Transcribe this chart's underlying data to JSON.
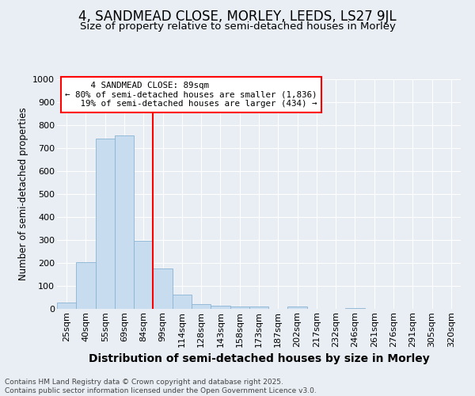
{
  "title": "4, SANDMEAD CLOSE, MORLEY, LEEDS, LS27 9JL",
  "subtitle": "Size of property relative to semi-detached houses in Morley",
  "xlabel": "Distribution of semi-detached houses by size in Morley",
  "ylabel": "Number of semi-detached properties",
  "categories": [
    "25sqm",
    "40sqm",
    "55sqm",
    "69sqm",
    "84sqm",
    "99sqm",
    "114sqm",
    "128sqm",
    "143sqm",
    "158sqm",
    "173sqm",
    "187sqm",
    "202sqm",
    "217sqm",
    "232sqm",
    "246sqm",
    "261sqm",
    "276sqm",
    "291sqm",
    "305sqm",
    "320sqm"
  ],
  "values": [
    28,
    205,
    740,
    755,
    295,
    175,
    62,
    20,
    15,
    12,
    12,
    0,
    12,
    0,
    0,
    4,
    0,
    0,
    0,
    0,
    0
  ],
  "bar_color": "#c8dcf0",
  "bar_edge_color": "#8ab4d4",
  "subject_bin_index": 4,
  "subject_label": "4 SANDMEAD CLOSE: 89sqm",
  "pct_smaller": 80,
  "count_smaller": 1836,
  "pct_larger": 19,
  "count_larger": 434,
  "vline_x_right_of_bin": 4,
  "ylim": [
    0,
    1000
  ],
  "yticks": [
    0,
    100,
    200,
    300,
    400,
    500,
    600,
    700,
    800,
    900,
    1000
  ],
  "background_color": "#e8eef4",
  "plot_bg_color": "#e8eef4",
  "grid_color": "#ffffff",
  "footer_line1": "Contains HM Land Registry data © Crown copyright and database right 2025.",
  "footer_line2": "Contains public sector information licensed under the Open Government Licence v3.0.",
  "title_fontsize": 12,
  "subtitle_fontsize": 9.5,
  "tick_fontsize": 8,
  "xlabel_fontsize": 10,
  "ylabel_fontsize": 8.5,
  "footer_fontsize": 6.5
}
